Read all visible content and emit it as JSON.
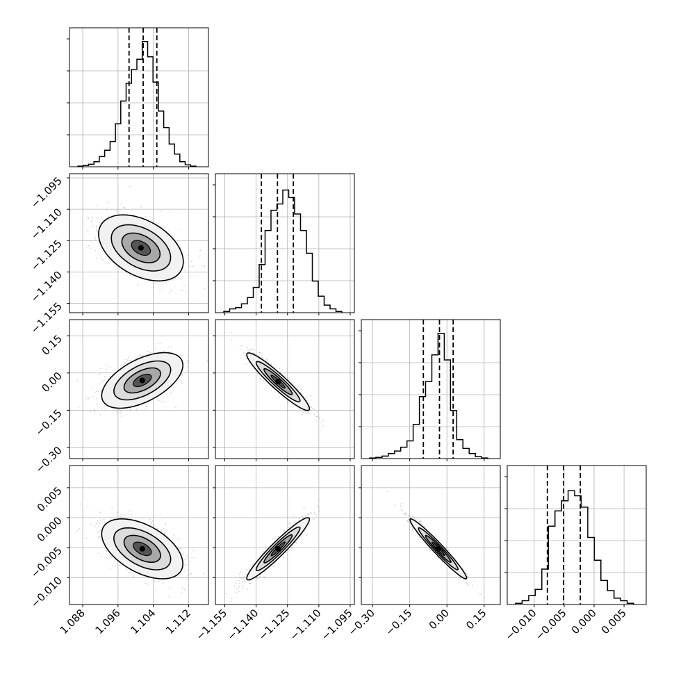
{
  "chart_data": {
    "type": "corner",
    "grid": true,
    "hist_line_color": "#000000",
    "quantile_line_style": "dashed",
    "parameters": [
      {
        "index": 0,
        "range": [
          1.085,
          1.1165
        ],
        "ticks": [
          1.088,
          1.096,
          1.104,
          1.112
        ],
        "tick_labels": [
          "1.088",
          "1.096",
          "1.104",
          "1.112"
        ],
        "quantiles": [
          1.0985,
          1.1017,
          1.1048
        ],
        "hist": [
          0.005,
          0.01,
          0.02,
          0.04,
          0.08,
          0.13,
          0.2,
          0.34,
          0.52,
          0.66,
          0.77,
          0.85,
          0.99,
          0.87,
          0.67,
          0.44,
          0.31,
          0.18,
          0.1,
          0.04,
          0.015,
          0.005
        ]
      },
      {
        "index": 1,
        "range": [
          -1.1595,
          -1.093
        ],
        "ticks": [
          -1.155,
          -1.14,
          -1.125,
          -1.11,
          -1.095
        ],
        "tick_labels": [
          "−1.155",
          "−1.140",
          "−1.125",
          "−1.110",
          "−1.095"
        ],
        "quantiles": [
          -1.1375,
          -1.1298,
          -1.1222
        ],
        "hist": [
          0.01,
          0.03,
          0.04,
          0.07,
          0.12,
          0.2,
          0.38,
          0.65,
          0.81,
          0.86,
          0.97,
          0.91,
          0.78,
          0.65,
          0.47,
          0.25,
          0.13,
          0.06,
          0.03,
          0.01
        ]
      },
      {
        "index": 2,
        "range": [
          -0.345,
          0.215
        ],
        "ticks": [
          -0.3,
          -0.15,
          0.0,
          0.15
        ],
        "tick_labels": [
          "−0.30",
          "−0.15",
          "0.00",
          "0.15"
        ],
        "quantiles": [
          -0.095,
          -0.03,
          0.025
        ],
        "hist": [
          0.005,
          0.01,
          0.02,
          0.04,
          0.06,
          0.09,
          0.14,
          0.27,
          0.49,
          0.61,
          0.82,
          0.99,
          0.78,
          0.38,
          0.15,
          0.08,
          0.04,
          0.015,
          0.005
        ]
      },
      {
        "index": 3,
        "range": [
          -0.0145,
          0.0087
        ],
        "ticks": [
          -0.01,
          -0.005,
          0.0,
          0.005
        ],
        "tick_labels": [
          "−0.010",
          "−0.005",
          "0.000",
          "0.005"
        ],
        "quantiles": [
          -0.0078,
          -0.0051,
          -0.0023
        ],
        "hist": [
          0.01,
          0.03,
          0.07,
          0.12,
          0.28,
          0.62,
          0.74,
          0.82,
          0.9,
          0.86,
          0.77,
          0.53,
          0.35,
          0.19,
          0.11,
          0.05,
          0.03,
          0.01
        ]
      }
    ],
    "pairs": [
      {
        "x": 0,
        "y": 1,
        "mean": [
          1.1012,
          -1.1285
        ],
        "sd": [
          0.0048,
          0.0079
        ],
        "corr": -0.42
      },
      {
        "x": 0,
        "y": 2,
        "mean": [
          1.1015,
          -0.03
        ],
        "sd": [
          0.0046,
          0.056
        ],
        "corr": 0.55
      },
      {
        "x": 1,
        "y": 2,
        "mean": [
          -1.1295,
          -0.035
        ],
        "sd": [
          0.0075,
          0.058
        ],
        "corr": -0.94
      },
      {
        "x": 0,
        "y": 3,
        "mean": [
          1.1015,
          -0.0052
        ],
        "sd": [
          0.0046,
          0.0025
        ],
        "corr": -0.5
      },
      {
        "x": 1,
        "y": 3,
        "mean": [
          -1.1295,
          -0.0052
        ],
        "sd": [
          0.0075,
          0.0026
        ],
        "corr": 0.95
      },
      {
        "x": 2,
        "y": 3,
        "mean": [
          -0.035,
          -0.0052
        ],
        "sd": [
          0.057,
          0.0025
        ],
        "corr": -0.97
      }
    ]
  }
}
